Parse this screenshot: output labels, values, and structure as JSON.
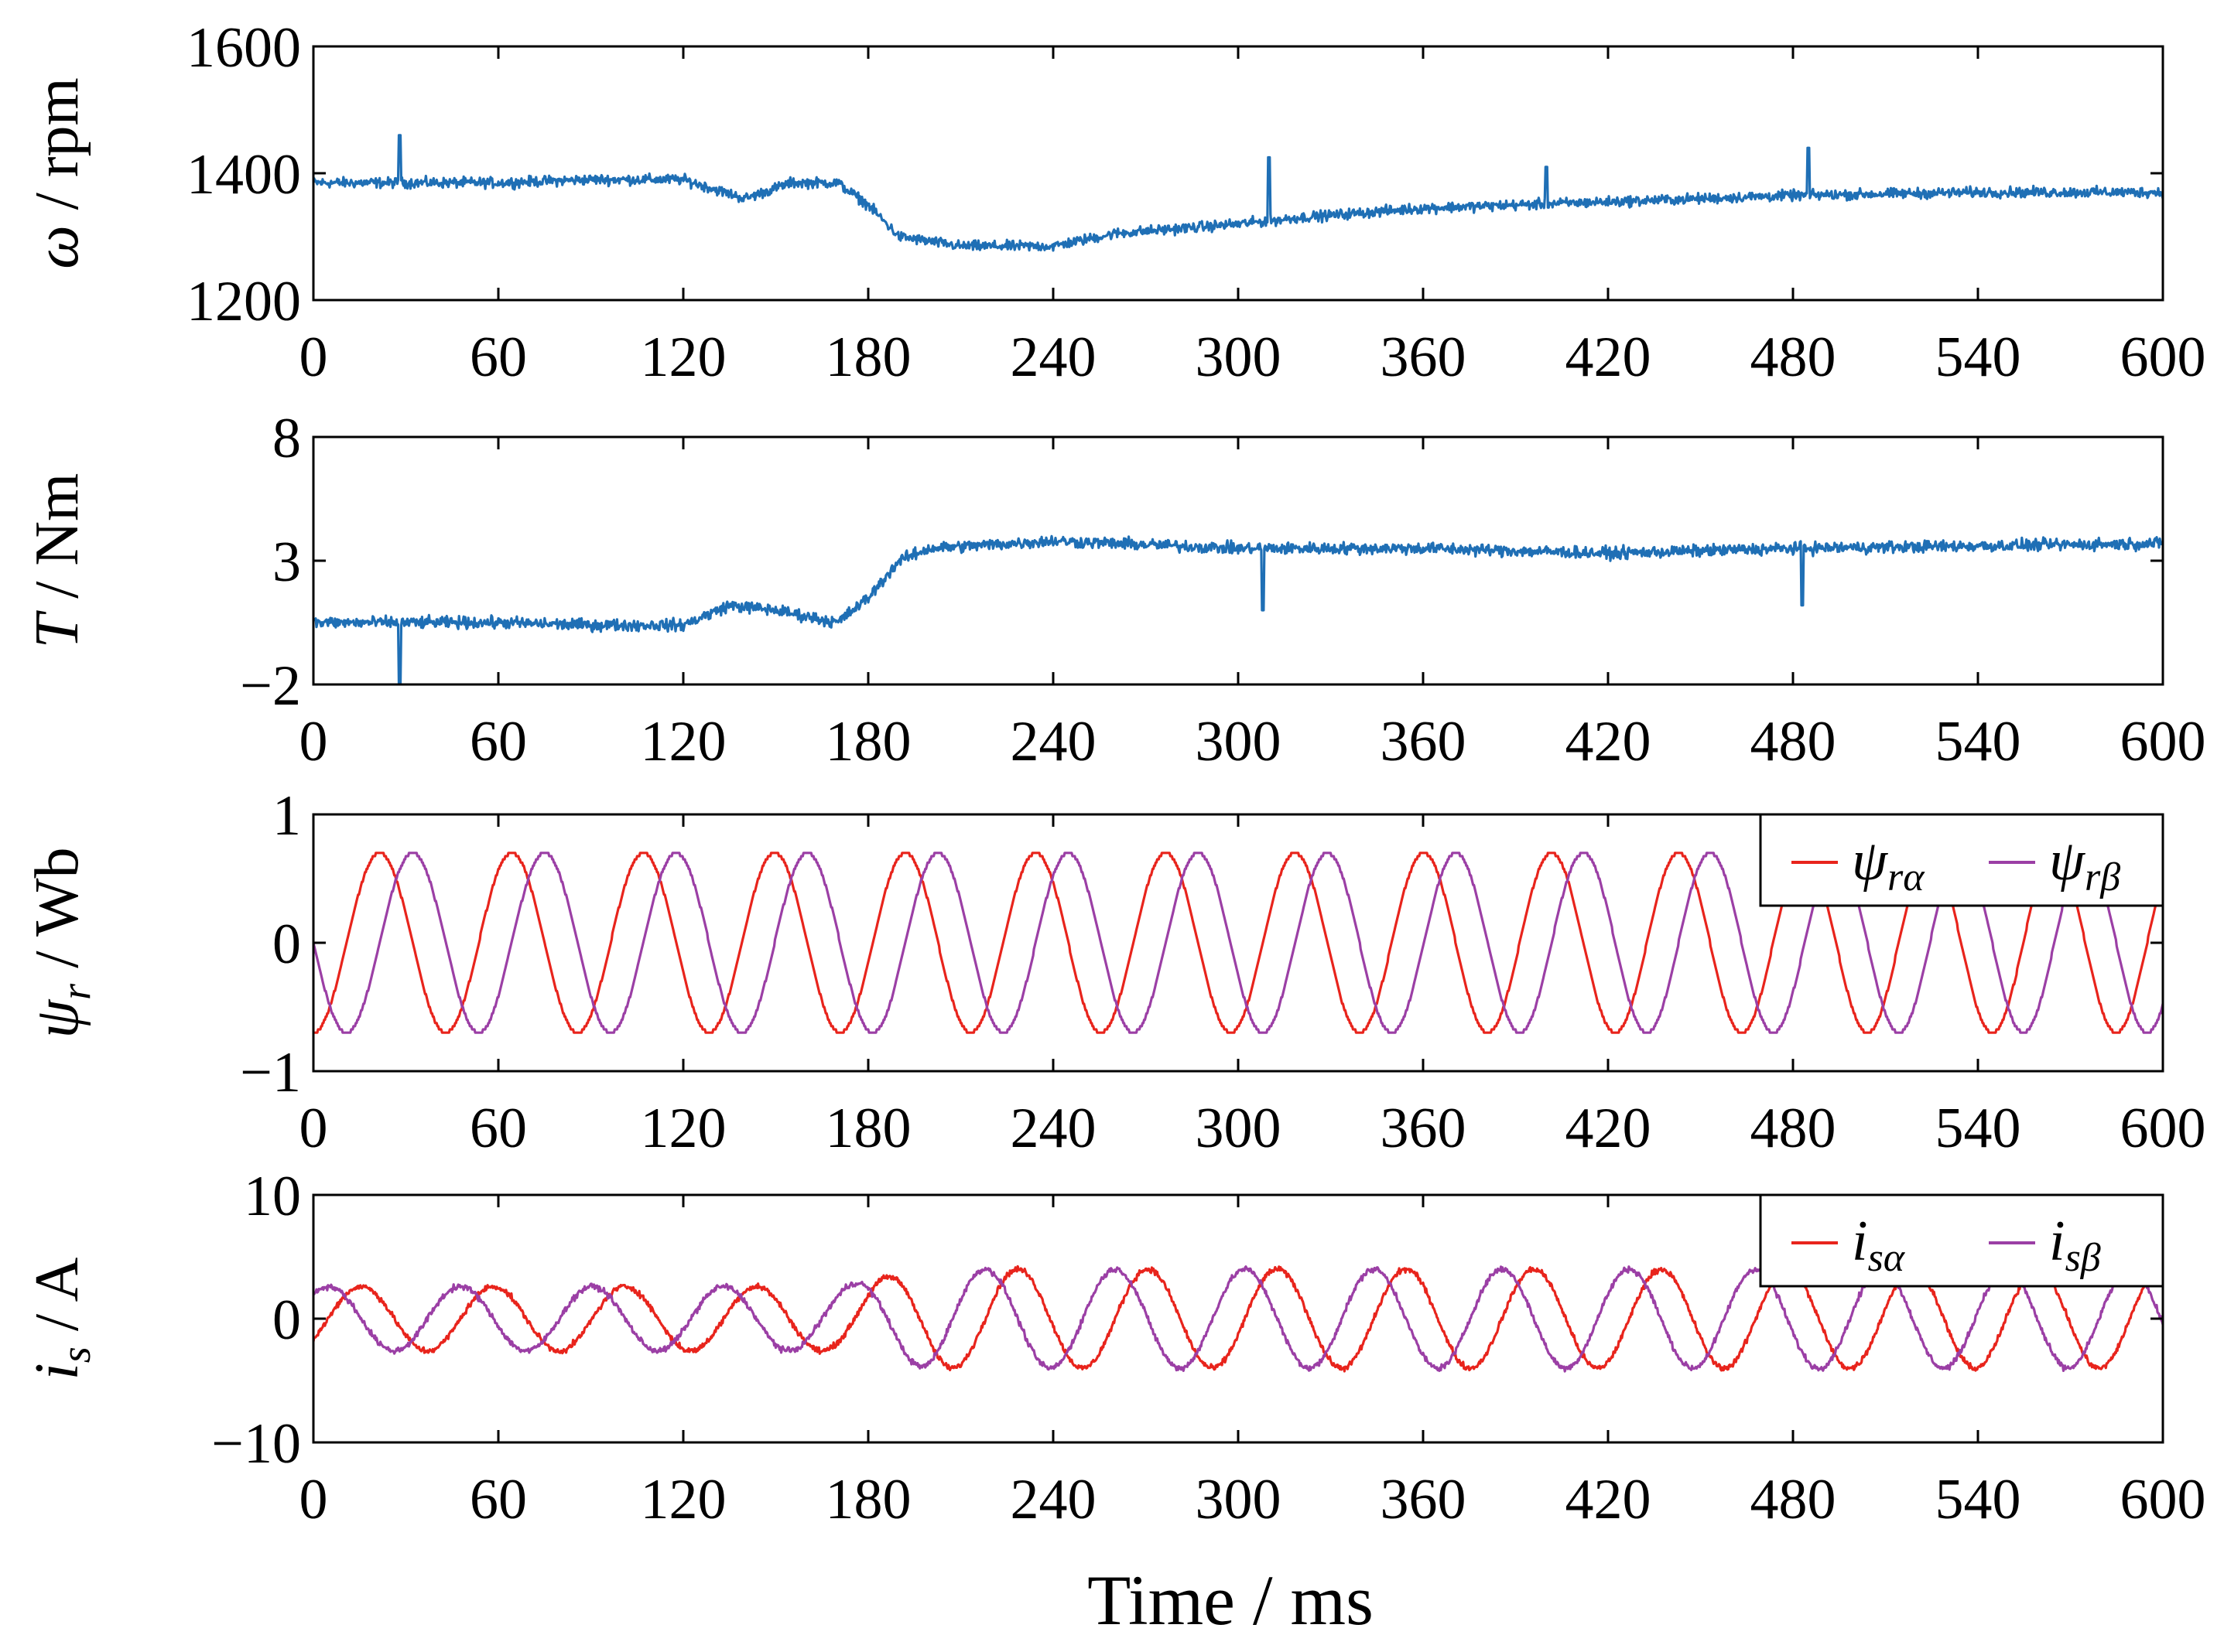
{
  "colors": {
    "blue": "#1f6fb5",
    "red": "#e8241c",
    "purple": "#9b3fa5"
  },
  "xlabel": "Time / ms",
  "chart_data": [
    {
      "type": "line",
      "id": "speed",
      "ylabel": {
        "sym": "ω",
        "unit": " / rpm"
      },
      "xlim": [
        0,
        600
      ],
      "ylim": [
        1200,
        1600
      ],
      "xticks": [
        "0",
        "60",
        "120",
        "180",
        "240",
        "300",
        "360",
        "420",
        "480",
        "540",
        "600"
      ],
      "yticks": [
        "1200",
        "1400",
        "1600"
      ],
      "series": [
        {
          "name": "ω",
          "color": "#1f6fb5",
          "noise": 12,
          "points": [
            [
              0,
              1385
            ],
            [
              30,
              1385
            ],
            [
              60,
              1385
            ],
            [
              90,
              1390
            ],
            [
              120,
              1390
            ],
            [
              140,
              1360
            ],
            [
              155,
              1385
            ],
            [
              170,
              1385
            ],
            [
              180,
              1350
            ],
            [
              190,
              1300
            ],
            [
              210,
              1285
            ],
            [
              240,
              1285
            ],
            [
              260,
              1305
            ],
            [
              300,
              1320
            ],
            [
              320,
              1330
            ],
            [
              360,
              1345
            ],
            [
              420,
              1355
            ],
            [
              480,
              1365
            ],
            [
              540,
              1370
            ],
            [
              600,
              1370
            ]
          ],
          "spikes": [
            [
              28,
              1460
            ],
            [
              310,
              1425
            ],
            [
              400,
              1410
            ],
            [
              485,
              1440
            ]
          ]
        }
      ]
    },
    {
      "type": "line",
      "id": "torque",
      "ylabel": {
        "sym": "T",
        "unit": " / Nm"
      },
      "xlim": [
        0,
        600
      ],
      "ylim": [
        -2,
        8
      ],
      "xticks": [
        "0",
        "60",
        "120",
        "180",
        "240",
        "300",
        "360",
        "420",
        "480",
        "540",
        "600"
      ],
      "yticks": [
        "−2",
        "3",
        "8"
      ],
      "series": [
        {
          "name": "T",
          "color": "#1f6fb5",
          "noise": 0.35,
          "points": [
            [
              0,
              0.5
            ],
            [
              60,
              0.5
            ],
            [
              90,
              0.4
            ],
            [
              120,
              0.4
            ],
            [
              135,
              1.2
            ],
            [
              150,
              1.0
            ],
            [
              170,
              0.5
            ],
            [
              180,
              1.5
            ],
            [
              190,
              3.0
            ],
            [
              200,
              3.5
            ],
            [
              240,
              3.8
            ],
            [
              300,
              3.5
            ],
            [
              360,
              3.5
            ],
            [
              420,
              3.3
            ],
            [
              480,
              3.5
            ],
            [
              540,
              3.6
            ],
            [
              600,
              3.7
            ]
          ],
          "spikes": [
            [
              28,
              -2.0
            ],
            [
              308,
              1.0
            ],
            [
              483,
              1.2
            ]
          ]
        }
      ]
    },
    {
      "type": "line",
      "id": "flux",
      "ylabel": {
        "sym": "ψ",
        "sub": "r",
        "unit": " / Wb"
      },
      "xlim": [
        0,
        600
      ],
      "ylim": [
        -1,
        1
      ],
      "xticks": [
        "0",
        "60",
        "120",
        "180",
        "240",
        "300",
        "360",
        "420",
        "480",
        "540",
        "600"
      ],
      "yticks": [
        "−1",
        "0",
        "1"
      ],
      "legend": {
        "position": "top-right",
        "entries": [
          {
            "sym": "ψ",
            "sub": "rα",
            "color": "#e8241c"
          },
          {
            "sym": "ψ",
            "sub": "rβ",
            "color": "#9b3fa5"
          }
        ]
      },
      "series": [
        {
          "name": "ψrα",
          "color": "#e8241c",
          "amplitude": 0.7,
          "phase_deg": -90,
          "period_ms": [
            [
              0,
              43
            ],
            [
              300,
              42
            ],
            [
              600,
              40
            ]
          ]
        },
        {
          "name": "ψrβ",
          "color": "#9b3fa5",
          "amplitude": 0.7,
          "phase_deg": 180,
          "period_ms": [
            [
              0,
              43
            ],
            [
              300,
              42
            ],
            [
              600,
              40
            ]
          ]
        }
      ]
    },
    {
      "type": "line",
      "id": "current",
      "ylabel": {
        "sym": "i",
        "sub": "s",
        "unit": " / A"
      },
      "xlim": [
        0,
        600
      ],
      "ylim": [
        -10,
        10
      ],
      "xticks": [
        "0",
        "60",
        "120",
        "180",
        "240",
        "300",
        "360",
        "420",
        "480",
        "540",
        "600"
      ],
      "yticks": [
        "−10",
        "0",
        "10"
      ],
      "legend": {
        "position": "top-right",
        "entries": [
          {
            "sym": "i",
            "sub": "sα",
            "color": "#e8241c"
          },
          {
            "sym": "i",
            "sub": "sβ",
            "color": "#9b3fa5"
          }
        ]
      },
      "series": [
        {
          "name": "isα",
          "color": "#e8241c",
          "noise": 0.35,
          "amplitude_ms": [
            [
              0,
              2.6
            ],
            [
              170,
              2.6
            ],
            [
              200,
              4.0
            ],
            [
              600,
              4.0
            ]
          ],
          "phase_deg": -40,
          "period_ms": [
            [
              0,
              43
            ],
            [
              300,
              42
            ],
            [
              600,
              40
            ]
          ]
        },
        {
          "name": "isβ",
          "color": "#9b3fa5",
          "noise": 0.35,
          "amplitude_ms": [
            [
              0,
              2.6
            ],
            [
              170,
              2.6
            ],
            [
              200,
              4.0
            ],
            [
              600,
              4.0
            ]
          ],
          "phase_deg": 50,
          "period_ms": [
            [
              0,
              43
            ],
            [
              300,
              42
            ],
            [
              600,
              40
            ]
          ]
        }
      ]
    }
  ]
}
